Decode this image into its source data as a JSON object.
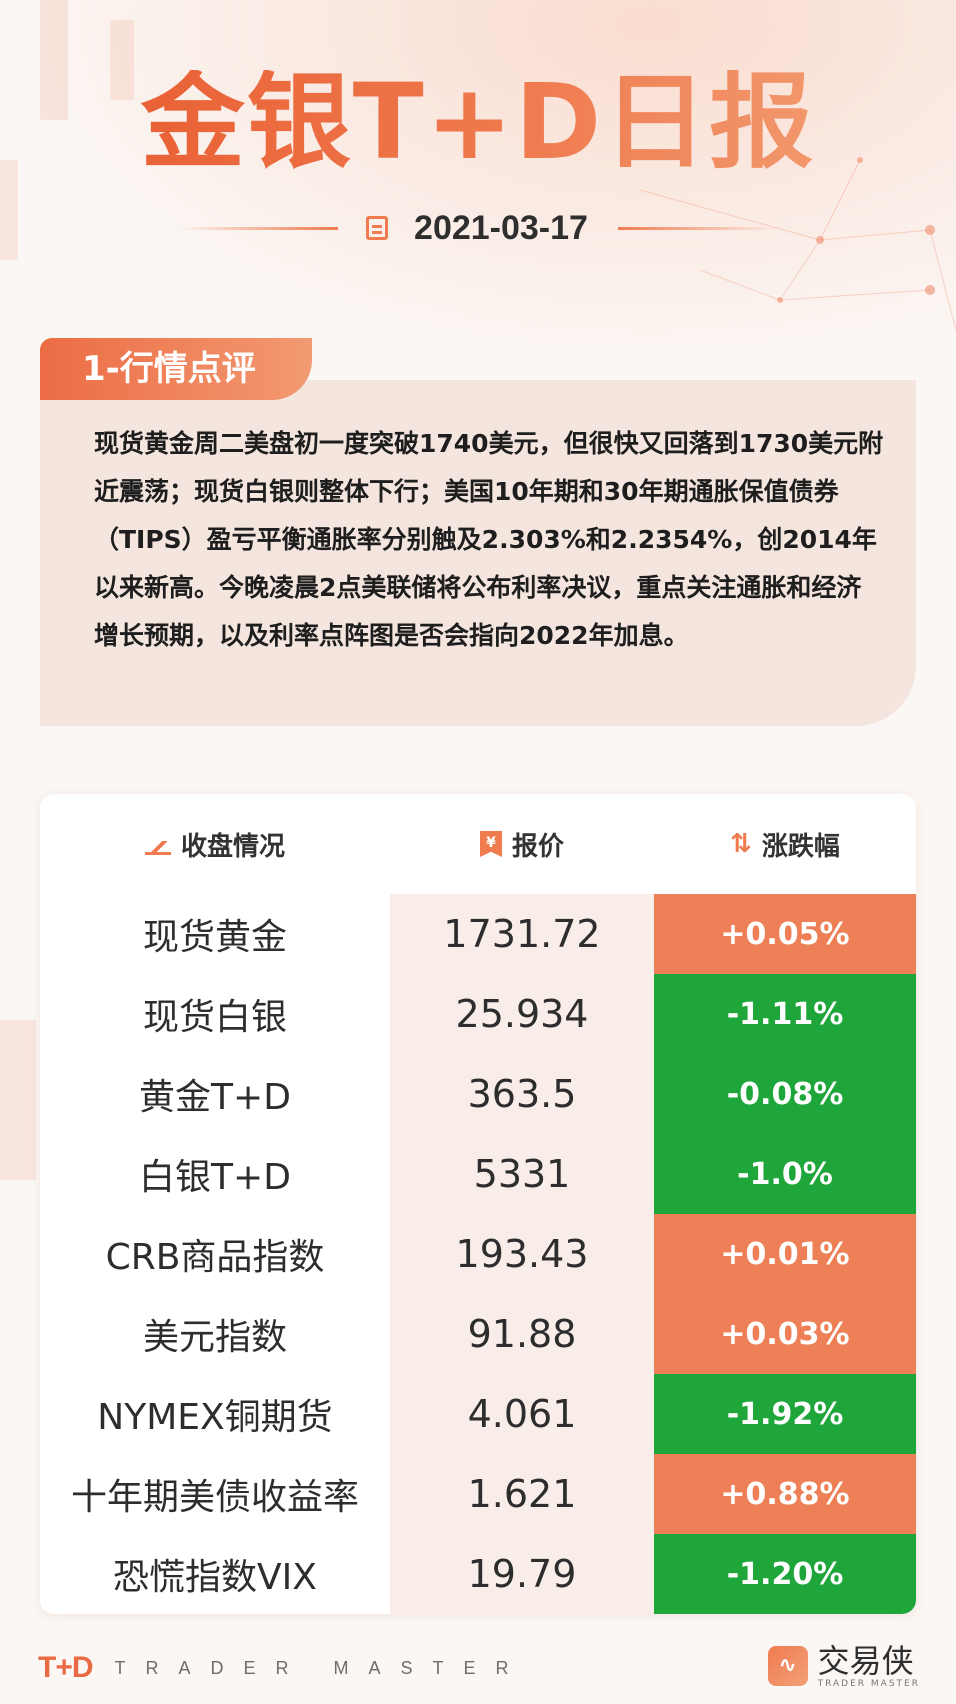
{
  "header": {
    "title": "金银T+D日报",
    "date": "2021-03-17"
  },
  "section1": {
    "tab_label": "1-行情点评",
    "text": "现货黄金周二美盘初一度突破1740美元，但很快又回落到1730美元附近震荡；现货白银则整体下行；美国10年期和30年期通胀保值债券（TIPS）盈亏平衡通胀率分别触及2.303%和2.2354%，创2014年以来新高。今晚凌晨2点美联储将公布利率决议，重点关注通胀和经济增长预期，以及利率点阵图是否会指向2022年加息。"
  },
  "table": {
    "headers": [
      "收盘情况",
      "报价",
      "涨跌幅"
    ],
    "header_icons": [
      "trend-chart-icon",
      "price-tag-icon",
      "up-down-arrows-icon"
    ],
    "rows": [
      {
        "name": "现货黄金",
        "price": "1731.72",
        "change": "+0.05%",
        "direction": "up"
      },
      {
        "name": "现货白银",
        "price": "25.934",
        "change": "-1.11%",
        "direction": "down"
      },
      {
        "name": "黄金T+D",
        "price": "363.5",
        "change": "-0.08%",
        "direction": "down"
      },
      {
        "name": "白银T+D",
        "price": "5331",
        "change": "-1.0%",
        "direction": "down"
      },
      {
        "name": "CRB商品指数",
        "price": "193.43",
        "change": "+0.01%",
        "direction": "up"
      },
      {
        "name": "美元指数",
        "price": "91.88",
        "change": "+0.03%",
        "direction": "up"
      },
      {
        "name": "NYMEX铜期货",
        "price": "4.061",
        "change": "-1.92%",
        "direction": "down"
      },
      {
        "name": "十年期美债收益率",
        "price": "1.621",
        "change": "+0.88%",
        "direction": "up"
      },
      {
        "name": "恐慌指数VIX",
        "price": "19.79",
        "change": "-1.20%",
        "direction": "down"
      }
    ]
  },
  "footer": {
    "logo": "T+D",
    "tagline": "TRADER MASTER",
    "brand": "交易侠",
    "brand_sub": "TRADER MASTER"
  },
  "colors": {
    "accent": "#ef7b4f",
    "up": "#ee8058",
    "down": "#1fa63a"
  }
}
